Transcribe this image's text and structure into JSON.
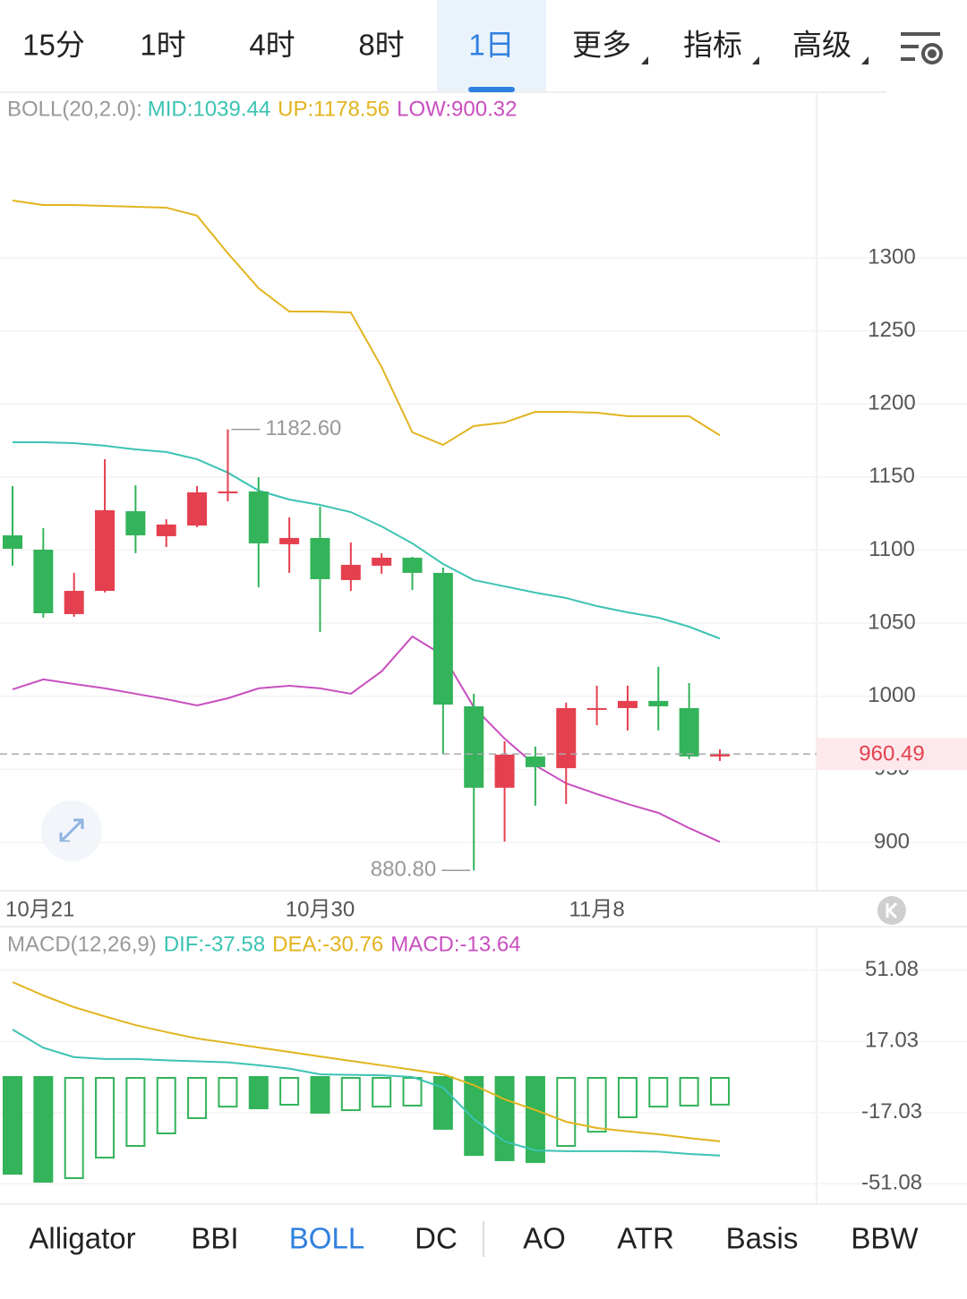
{
  "tabs": {
    "items": [
      "15分",
      "1时",
      "4时",
      "8时",
      "1日",
      "更多",
      "指标",
      "高级"
    ],
    "active": "1日"
  },
  "chart_data": [
    {
      "type": "candlestick",
      "legend_label": "BOLL(20,2.0):",
      "categories": [
        "10月21",
        null,
        null,
        null,
        null,
        null,
        null,
        null,
        null,
        null,
        "10月30",
        null,
        null,
        null,
        null,
        null,
        null,
        null,
        null,
        "11月8",
        null,
        null,
        null,
        null
      ],
      "open": [
        1110.1,
        1100.3,
        1056.2,
        1072.1,
        1126.6,
        1109.5,
        1116.8,
        1139.0,
        1140.1,
        1104.0,
        1108.3,
        1079.5,
        1089.3,
        1094.8,
        1084.4,
        993.1,
        937.4,
        958.8,
        950.8,
        990.7,
        991.9,
        996.8,
        991.9,
        958.8
      ],
      "high": [
        1143.8,
        1115.0,
        1084.4,
        1162.2,
        1144.4,
        1121.1,
        1143.8,
        1182.6,
        1149.9,
        1122.4,
        1129.7,
        1105.2,
        1097.9,
        1095.4,
        1088.0,
        1001.7,
        969.2,
        965.5,
        995.6,
        1007.2,
        1007.2,
        1020.1,
        1009.0,
        963.6
      ],
      "low": [
        1089.3,
        1053.8,
        1054.4,
        1071.0,
        1097.9,
        1102.1,
        1115.6,
        1133.4,
        1074.6,
        1084.4,
        1043.9,
        1072.1,
        1083.8,
        1072.7,
        960.6,
        880.8,
        900.6,
        925.1,
        926.3,
        980.2,
        976.6,
        976.6,
        957.0,
        955.7
      ],
      "close": [
        1100.9,
        1056.8,
        1072.1,
        1127.3,
        1110.1,
        1117.5,
        1139.5,
        1140.1,
        1104.6,
        1108.3,
        1080.1,
        1089.9,
        1094.8,
        1084.4,
        994.3,
        937.4,
        960.0,
        951.5,
        991.9,
        991.9,
        996.8,
        993.1,
        958.8,
        960.49
      ],
      "up_color": "#e5404f",
      "down_color": "#33b35a",
      "series": [
        {
          "name": "MID:1039.44",
          "color": "#3cc3b2",
          "values": [
            1173.8,
            1173.8,
            1173.2,
            1171.4,
            1168.9,
            1167.1,
            1162.2,
            1153.0,
            1140.7,
            1134.6,
            1130.9,
            1126.0,
            1116.2,
            1104.6,
            1090.5,
            1079.5,
            1075.2,
            1070.9,
            1067.2,
            1061.7,
            1057.4,
            1053.8,
            1047.6,
            1039.44
          ]
        },
        {
          "name": "UP:1178.56",
          "color": "#e2b41e",
          "values": [
            1339.2,
            1336.1,
            1336.1,
            1335.5,
            1334.9,
            1334.3,
            1328.8,
            1303.1,
            1279.2,
            1263.2,
            1263.2,
            1262.6,
            1225.3,
            1180.6,
            1172.0,
            1184.9,
            1187.3,
            1194.6,
            1194.6,
            1194.0,
            1191.6,
            1191.6,
            1191.6,
            1178.56
          ]
        },
        {
          "name": "LOW:900.32",
          "color": "#c84fbf",
          "values": [
            1004.7,
            1011.5,
            1008.4,
            1005.4,
            1001.7,
            998.0,
            993.7,
            998.6,
            1005.4,
            1007.2,
            1005.4,
            1001.7,
            1017.0,
            1040.9,
            1028.0,
            992.5,
            971.0,
            952.7,
            940.4,
            933.1,
            926.3,
            920.2,
            909.8,
            900.32
          ]
        }
      ],
      "annotations": [
        {
          "value": 1182.6,
          "label": "1182.60"
        },
        {
          "value": 880.8,
          "label": "880.80"
        }
      ],
      "ylim": [
        866.9,
        1413.3
      ],
      "yticks": [
        900,
        950,
        1000,
        1050,
        1100,
        1150,
        1200,
        1250,
        1300
      ],
      "grid": true
    },
    {
      "type": "macd",
      "legend_label": "MACD(12,26,9)",
      "series": [
        {
          "name": "DIF:-37.58",
          "color": "#3cc3b2",
          "values": [
            22.7,
            14.0,
            9.5,
            8.6,
            8.6,
            8.0,
            7.5,
            7.0,
            5.6,
            4.0,
            1.3,
            1.0,
            0.8,
            0,
            -5.1,
            -20.1,
            -30.8,
            -35.1,
            -35.5,
            -35.5,
            -35.5,
            -35.7,
            -36.8,
            -37.58
          ]
        },
        {
          "name": "DEA:-30.76",
          "color": "#e2b41e",
          "values": [
            45.4,
            39.0,
            33.4,
            29.0,
            24.8,
            21.5,
            18.4,
            16.3,
            14.1,
            12.0,
            9.8,
            7.7,
            5.6,
            3.5,
            1.3,
            -3.9,
            -10.7,
            -15.8,
            -21.4,
            -24.4,
            -26.0,
            -27.4,
            -29.2,
            -30.76
          ]
        }
      ],
      "histogram": {
        "name": "MACD:-13.64",
        "color": "#c84fbf",
        "bar_color": "#33b35a",
        "values": [
          -46.3,
          -50.1,
          -48.8,
          -39.0,
          -33.4,
          -27.4,
          -20.1,
          -14.6,
          -15.0,
          -13.7,
          -17.1,
          -16.3,
          -14.6,
          -14.1,
          -24.8,
          -37.3,
          -39.8,
          -40.7,
          -33.4,
          -26.6,
          -19.7,
          -14.6,
          -14.1,
          -13.64
        ]
      },
      "ylim": [
        -60.8,
        69.8
      ],
      "yticks": [
        -51.08,
        -17.03,
        17.03,
        51.08
      ],
      "grid": true
    }
  ],
  "indicator_tabs": {
    "items": [
      "Alligator",
      "BBI",
      "BOLL",
      "DC",
      "AO",
      "ATR",
      "Basis",
      "BBW"
    ],
    "active": "BOLL"
  }
}
